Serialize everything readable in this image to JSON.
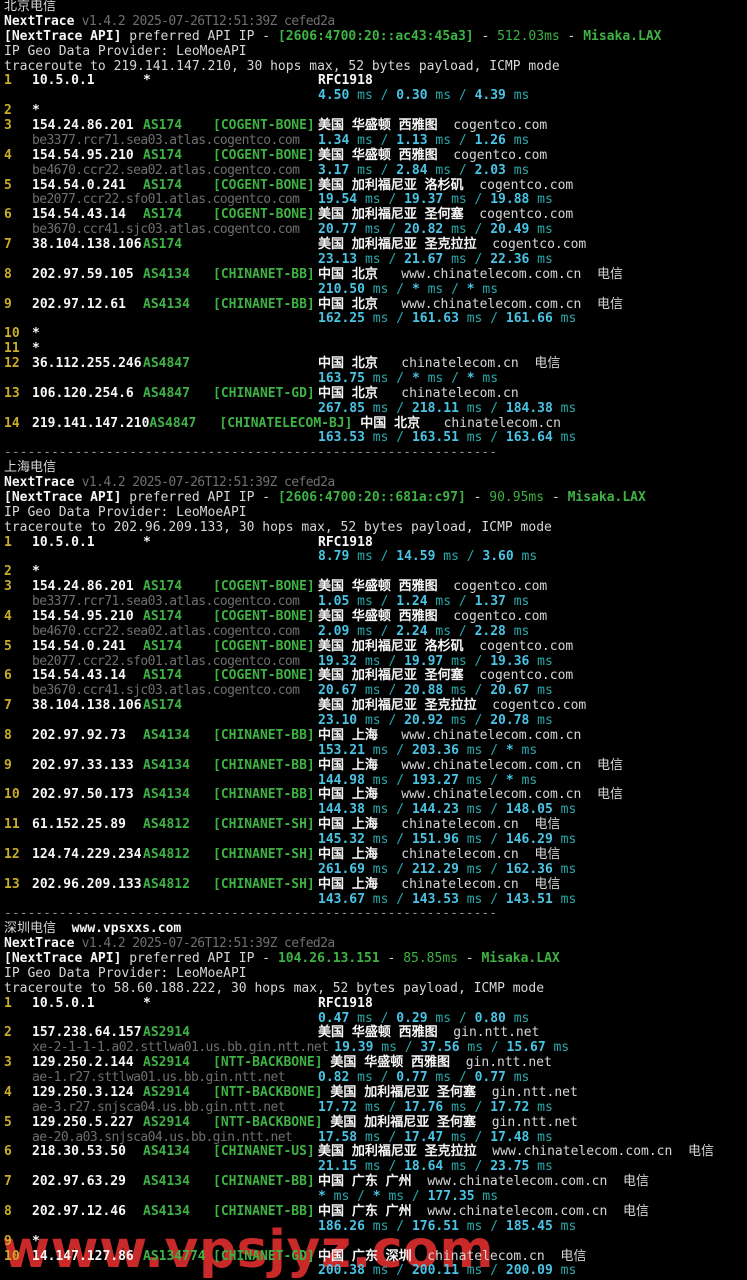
{
  "labels": {
    "app": "NextTrace",
    "version": "v1.4.2 2025-07-26T12:51:39Z cefed2a",
    "api_prefix": "[NextTrace API]",
    "api_mid": "preferred API IP",
    "geo": "IP Geo Data Provider: LeoMoeAPI",
    "star": "*",
    "ms_unit": "ms",
    "separator": "---------------------------------------------------------------",
    "watermark": "www.vpsjyz.com"
  },
  "colors": {
    "background": "#000000",
    "green": "#3fb244",
    "yellow": "#c9ad2a",
    "cyan_value": "#4ac4e4",
    "cyan_unit": "#2aa9ab",
    "white_bold": "#f7f7f7",
    "white": "#d6d6d6",
    "gray_dim": "#6f6f6f",
    "watermark_red": "#df2e2e"
  },
  "sections": [
    {
      "title": "北京电信",
      "title_extra": "",
      "api_ip": "[2606:4700:20::ac43:45a3]",
      "api_latency": "512.03ms",
      "api_node": "Misaka.LAX",
      "trace": "traceroute to 219.141.147.210, 30 hops max, 52 bytes payload, ICMP mode",
      "hops": [
        {
          "n": "1",
          "ip": "10.5.0.1",
          "star": "asn",
          "loc": "RFC1918",
          "rtt": [
            "4.50",
            "0.30",
            "4.39"
          ]
        },
        {
          "n": "2",
          "star": "ip"
        },
        {
          "n": "3",
          "ip": "154.24.86.201",
          "asn": "AS174",
          "tag": "[COGENT-BONE]",
          "loc": "美国 华盛顿 西雅图",
          "dom": "cogentco.com",
          "host": "be3377.rcr71.sea03.atlas.cogentco.com",
          "rtt": [
            "1.34",
            "1.13",
            "1.26"
          ]
        },
        {
          "n": "4",
          "ip": "154.54.95.210",
          "asn": "AS174",
          "tag": "[COGENT-BONE]",
          "loc": "美国 华盛顿 西雅图",
          "dom": "cogentco.com",
          "host": "be4670.ccr22.sea02.atlas.cogentco.com",
          "rtt": [
            "3.17",
            "2.84",
            "2.03"
          ]
        },
        {
          "n": "5",
          "ip": "154.54.0.241",
          "asn": "AS174",
          "tag": "[COGENT-BONE]",
          "loc": "美国 加利福尼亚 洛杉矶",
          "dom": "cogentco.com",
          "host": "be2077.ccr22.sfo01.atlas.cogentco.com",
          "rtt": [
            "19.54",
            "19.37",
            "19.88"
          ]
        },
        {
          "n": "6",
          "ip": "154.54.43.14",
          "asn": "AS174",
          "tag": "[COGENT-BONE]",
          "loc": "美国 加利福尼亚 圣何塞",
          "dom": "cogentco.com",
          "host": "be3670.ccr41.sjc03.atlas.cogentco.com",
          "rtt": [
            "20.77",
            "20.82",
            "20.49"
          ]
        },
        {
          "n": "7",
          "ip": "38.104.138.106",
          "asn": "AS174",
          "loc": "美国 加利福尼亚 圣克拉拉",
          "dom": "cogentco.com",
          "rtt": [
            "23.13",
            "21.67",
            "22.36"
          ]
        },
        {
          "n": "8",
          "ip": "202.97.59.105",
          "asn": "AS4134",
          "tag": "[CHINANET-BB]",
          "loc": "中国 北京",
          "dom": "www.chinatelecom.com.cn",
          "car": "电信",
          "rtt": [
            "210.50",
            "*",
            "*"
          ]
        },
        {
          "n": "9",
          "ip": "202.97.12.61",
          "asn": "AS4134",
          "tag": "[CHINANET-BB]",
          "loc": "中国 北京",
          "dom": "www.chinatelecom.com.cn",
          "car": "电信",
          "rtt": [
            "162.25",
            "161.63",
            "161.66"
          ]
        },
        {
          "n": "10",
          "star": "ip"
        },
        {
          "n": "11",
          "star": "ip"
        },
        {
          "n": "12",
          "ip": "36.112.255.246",
          "asn": "AS4847",
          "loc": "中国 北京",
          "dom": "chinatelecom.cn",
          "car": "电信",
          "rtt": [
            "163.75",
            "*",
            "*"
          ]
        },
        {
          "n": "13",
          "ip": "106.120.254.6",
          "asn": "AS4847",
          "tag": "[CHINANET-GD]",
          "loc": "中国 北京",
          "dom": "chinatelecom.cn",
          "rtt": [
            "267.85",
            "218.11",
            "184.38"
          ]
        },
        {
          "n": "14",
          "ip": "219.141.147.210",
          "asn": "AS4847",
          "tag": "[CHINATELECOM-BJ]",
          "loc": "中国 北京",
          "dom": "chinatelecom.cn",
          "rtt": [
            "163.53",
            "163.51",
            "163.64"
          ]
        }
      ]
    },
    {
      "title": "上海电信",
      "title_extra": "",
      "api_ip": "[2606:4700:20::681a:c97]",
      "api_latency": "90.95ms",
      "api_node": "Misaka.LAX",
      "trace": "traceroute to 202.96.209.133, 30 hops max, 52 bytes payload, ICMP mode",
      "hops": [
        {
          "n": "1",
          "ip": "10.5.0.1",
          "star": "asn",
          "loc": "RFC1918",
          "rtt": [
            "8.79",
            "14.59",
            "3.60"
          ]
        },
        {
          "n": "2",
          "star": "ip"
        },
        {
          "n": "3",
          "ip": "154.24.86.201",
          "asn": "AS174",
          "tag": "[COGENT-BONE]",
          "loc": "美国 华盛顿 西雅图",
          "dom": "cogentco.com",
          "host": "be3377.rcr71.sea03.atlas.cogentco.com",
          "rtt": [
            "1.05",
            "1.24",
            "1.37"
          ]
        },
        {
          "n": "4",
          "ip": "154.54.95.210",
          "asn": "AS174",
          "tag": "[COGENT-BONE]",
          "loc": "美国 华盛顿 西雅图",
          "dom": "cogentco.com",
          "host": "be4670.ccr22.sea02.atlas.cogentco.com",
          "rtt": [
            "2.09",
            "2.24",
            "2.28"
          ]
        },
        {
          "n": "5",
          "ip": "154.54.0.241",
          "asn": "AS174",
          "tag": "[COGENT-BONE]",
          "loc": "美国 加利福尼亚 洛杉矶",
          "dom": "cogentco.com",
          "host": "be2077.ccr22.sfo01.atlas.cogentco.com",
          "rtt": [
            "19.32",
            "19.97",
            "19.36"
          ]
        },
        {
          "n": "6",
          "ip": "154.54.43.14",
          "asn": "AS174",
          "tag": "[COGENT-BONE]",
          "loc": "美国 加利福尼亚 圣何塞",
          "dom": "cogentco.com",
          "host": "be3670.ccr41.sjc03.atlas.cogentco.com",
          "rtt": [
            "20.67",
            "20.88",
            "20.67"
          ]
        },
        {
          "n": "7",
          "ip": "38.104.138.106",
          "asn": "AS174",
          "loc": "美国 加利福尼亚 圣克拉拉",
          "dom": "cogentco.com",
          "rtt": [
            "23.10",
            "20.92",
            "20.78"
          ]
        },
        {
          "n": "8",
          "ip": "202.97.92.73",
          "asn": "AS4134",
          "tag": "[CHINANET-BB]",
          "loc": "中国 上海",
          "dom": "www.chinatelecom.com.cn",
          "rtt": [
            "153.21",
            "203.36",
            "*"
          ]
        },
        {
          "n": "9",
          "ip": "202.97.33.133",
          "asn": "AS4134",
          "tag": "[CHINANET-BB]",
          "loc": "中国 上海",
          "dom": "www.chinatelecom.com.cn",
          "car": "电信",
          "rtt": [
            "144.98",
            "193.27",
            "*"
          ]
        },
        {
          "n": "10",
          "ip": "202.97.50.173",
          "asn": "AS4134",
          "tag": "[CHINANET-BB]",
          "loc": "中国 上海",
          "dom": "www.chinatelecom.com.cn",
          "car": "电信",
          "rtt": [
            "144.38",
            "144.23",
            "148.05"
          ]
        },
        {
          "n": "11",
          "ip": "61.152.25.89",
          "asn": "AS4812",
          "tag": "[CHINANET-SH]",
          "loc": "中国 上海",
          "dom": "chinatelecom.cn",
          "car": "电信",
          "rtt": [
            "145.32",
            "151.96",
            "146.29"
          ]
        },
        {
          "n": "12",
          "ip": "124.74.229.234",
          "asn": "AS4812",
          "tag": "[CHINANET-SH]",
          "loc": "中国 上海",
          "dom": "chinatelecom.cn",
          "car": "电信",
          "rtt": [
            "261.69",
            "212.29",
            "162.36"
          ]
        },
        {
          "n": "13",
          "ip": "202.96.209.133",
          "asn": "AS4812",
          "tag": "[CHINANET-SH]",
          "loc": "中国 上海",
          "dom": "chinatelecom.cn",
          "car": "电信",
          "rtt": [
            "143.67",
            "143.53",
            "143.51"
          ]
        }
      ]
    },
    {
      "title": "深圳电信",
      "title_extra": "www.vpsxxs.com",
      "api_ip": "104.26.13.151",
      "api_latency": "85.85ms",
      "api_node": "Misaka.LAX",
      "trace": "traceroute to 58.60.188.222, 30 hops max, 52 bytes payload, ICMP mode",
      "hops": [
        {
          "n": "1",
          "ip": "10.5.0.1",
          "star": "asn",
          "loc": "RFC1918",
          "rtt": [
            "0.47",
            "0.29",
            "0.80"
          ]
        },
        {
          "n": "2",
          "ip": "157.238.64.157",
          "asn": "AS2914",
          "loc": "美国 华盛顿 西雅图",
          "dom": "gin.ntt.net",
          "host": "xe-2-1-1-1.a02.sttlwa01.us.bb.gin.ntt.net",
          "rtt": [
            "19.39",
            "37.56",
            "15.67"
          ]
        },
        {
          "n": "3",
          "ip": "129.250.2.144",
          "asn": "AS2914",
          "tag": "[NTT-BACKBONE]",
          "loc": "美国 华盛顿 西雅图",
          "dom": "gin.ntt.net",
          "host": "ae-1.r27.sttlwa01.us.bb.gin.ntt.net",
          "rtt": [
            "0.82",
            "0.77",
            "0.77"
          ]
        },
        {
          "n": "4",
          "ip": "129.250.3.124",
          "asn": "AS2914",
          "tag": "[NTT-BACKBONE]",
          "loc": "美国 加利福尼亚 圣何塞",
          "dom": "gin.ntt.net",
          "host": "ae-3.r27.snjsca04.us.bb.gin.ntt.net",
          "rtt": [
            "17.72",
            "17.76",
            "17.72"
          ]
        },
        {
          "n": "5",
          "ip": "129.250.5.227",
          "asn": "AS2914",
          "tag": "[NTT-BACKBONE]",
          "loc": "美国 加利福尼亚 圣何塞",
          "dom": "gin.ntt.net",
          "host": "ae-20.a03.snjsca04.us.bb.gin.ntt.net",
          "rtt": [
            "17.58",
            "17.47",
            "17.48"
          ]
        },
        {
          "n": "6",
          "ip": "218.30.53.50",
          "asn": "AS4134",
          "tag": "[CHINANET-US]",
          "loc": "美国 加利福尼亚 圣克拉拉",
          "dom": "www.chinatelecom.com.cn",
          "car": "电信",
          "rtt": [
            "21.15",
            "18.64",
            "23.75"
          ]
        },
        {
          "n": "7",
          "ip": "202.97.63.29",
          "asn": "AS4134",
          "tag": "[CHINANET-BB]",
          "loc": "中国 广东 广州",
          "dom": "www.chinatelecom.com.cn",
          "car": "电信",
          "rtt": [
            "*",
            "*",
            "177.35"
          ]
        },
        {
          "n": "8",
          "ip": "202.97.12.46",
          "asn": "AS4134",
          "tag": "[CHINANET-BB]",
          "loc": "中国 广东 广州",
          "dom": "www.chinatelecom.com.cn",
          "car": "电信",
          "rtt": [
            "186.26",
            "176.51",
            "185.45"
          ]
        },
        {
          "n": "9",
          "star": "ip"
        },
        {
          "n": "10",
          "ip": "14.147.127.86",
          "asn": "AS134774",
          "tag": "[CHINANET-GD]",
          "loc": "中国 广东 深圳",
          "dom": "chinatelecom.cn",
          "car": "电信",
          "rtt": [
            "200.38",
            "200.11",
            "200.09"
          ]
        }
      ]
    }
  ]
}
